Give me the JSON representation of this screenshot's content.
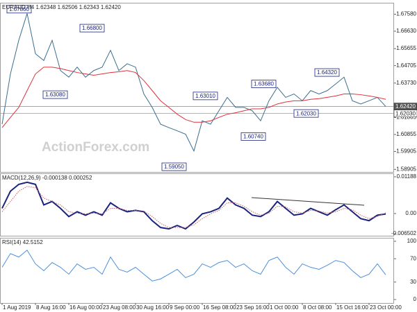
{
  "chart_data": [
    {
      "type": "line",
      "title": "EURAUD,H4  1.62348 1.62506 1.62343 1.62420",
      "watermark": "ActionForex.com",
      "x": [
        0,
        12,
        24,
        36,
        48,
        60,
        72,
        84,
        96,
        108,
        120,
        132,
        144,
        156,
        168,
        180,
        192,
        204,
        216,
        228,
        240,
        252,
        264,
        276,
        288,
        300,
        312,
        324,
        336,
        348,
        360,
        372,
        384,
        396,
        408,
        420,
        432,
        444,
        456,
        468,
        480,
        492,
        504,
        516,
        528,
        540,
        552
      ],
      "series": [
        {
          "name": "EURAUD",
          "color": "#3a6e8f",
          "style": "solid",
          "values": [
            1.6143,
            1.6424,
            1.6612,
            1.6762,
            1.6537,
            1.6499,
            1.6612,
            1.6443,
            1.6406,
            1.6462,
            1.6406,
            1.6443,
            1.6462,
            1.6556,
            1.6443,
            1.6481,
            1.6462,
            1.6312,
            1.6237,
            1.6143,
            1.6124,
            1.6106,
            1.6087,
            1.5993,
            1.6162,
            1.6143,
            1.6218,
            1.6293,
            1.6237,
            1.6237,
            1.6218,
            1.6162,
            1.6274,
            1.6349,
            1.6293,
            1.6312,
            1.6274,
            1.6331,
            1.6312,
            1.6331,
            1.6368,
            1.6406,
            1.6274,
            1.6256,
            1.6274,
            1.6293,
            1.6242
          ]
        },
        {
          "name": "MA",
          "color": "#e0303a",
          "style": "solid",
          "values": [
            1.6124,
            1.6181,
            1.6237,
            1.6331,
            1.6424,
            1.6462,
            1.6462,
            1.6454,
            1.6443,
            1.6432,
            1.6424,
            1.6417,
            1.6424,
            1.6432,
            1.6436,
            1.6443,
            1.6432,
            1.6387,
            1.6331,
            1.6274,
            1.6237,
            1.6199,
            1.6169,
            1.6154,
            1.6154,
            1.6162,
            1.6181,
            1.6199,
            1.6207,
            1.6218,
            1.6229,
            1.6229,
            1.6237,
            1.6256,
            1.6267,
            1.6274,
            1.6274,
            1.6282,
            1.6286,
            1.6293,
            1.6301,
            1.6312,
            1.6312,
            1.6308,
            1.6301,
            1.6293,
            1.6282
          ]
        }
      ],
      "xlim": [
        -3,
        564
      ],
      "ylim": [
        1.5876,
        1.6818
      ],
      "yticks": [
        {
          "value": 1.6758,
          "label": "1.67580"
        },
        {
          "value": 1.6663,
          "label": "1.66630"
        },
        1.65655,
        1.64705,
        {
          "value": 1.6373,
          "label": "1.63730"
        },
        1.61805,
        1.60855,
        1.59905,
        1.58905
      ],
      "price_lines": [
        {
          "value": 1.6242,
          "label": "1.62420",
          "color": "#555555"
        },
        {
          "value": 1.6203,
          "label": "1.62030",
          "color": "#ffffff"
        }
      ],
      "annotations": [
        {
          "label": "1.67860",
          "value": 1.6786,
          "x": 42
        },
        {
          "label": "1.66800",
          "value": 1.668,
          "x": 147
        },
        {
          "label": "1.63080",
          "value": 1.6308,
          "x": 94
        },
        {
          "label": "1.59050",
          "value": 1.5905,
          "x": 265
        },
        {
          "label": "1.63010",
          "value": 1.6301,
          "x": 310
        },
        {
          "label": "1.60740",
          "value": 1.6074,
          "x": 379
        },
        {
          "label": "1.63680",
          "value": 1.6368,
          "x": 394
        },
        {
          "label": "1.62030",
          "value": 1.6203,
          "x": 455
        },
        {
          "label": "1.64320",
          "value": 1.6432,
          "x": 485
        }
      ]
    },
    {
      "type": "line",
      "title": "MACD(12,26,9) -0.000138 0.000252",
      "x": [
        0,
        12,
        24,
        36,
        48,
        60,
        72,
        84,
        96,
        108,
        120,
        132,
        144,
        156,
        168,
        180,
        192,
        204,
        216,
        228,
        240,
        252,
        264,
        276,
        288,
        300,
        312,
        324,
        336,
        348,
        360,
        372,
        384,
        396,
        408,
        420,
        432,
        444,
        456,
        468,
        480,
        492,
        504,
        516,
        528,
        540,
        552
      ],
      "series": [
        {
          "name": "MACD",
          "color": "#1a237e",
          "style": "thick",
          "values": [
            0.00168,
            0.00722,
            0.00944,
            0.0101,
            0.00944,
            0.00279,
            0.0039,
            0.00168,
            -0.00097,
            0.00058,
            -0.00053,
            0.00058,
            -0.00053,
            0.00346,
            0.00168,
            0.00058,
            0.00102,
            0.00058,
            -0.0023,
            -0.00452,
            -0.00496,
            -0.00385,
            -0.00496,
            -0.00275,
            -9e-05,
            0.00058,
            0.00168,
            0.005,
            0.00279,
            0.00168,
            -0.00053,
            -0.00097,
            0.00058,
            0.0039,
            0.00168,
            -0.00053,
            -9e-05,
            0.00168,
            0.00058,
            -0.00053,
            0.00124,
            0.00279,
            0.00058,
            -0.00164,
            -0.0023,
            -0.00053,
            -0.000138
          ]
        },
        {
          "name": "Signal",
          "color": "#c06060",
          "style": "dotted",
          "values": [
            0.00058,
            0.0039,
            0.00722,
            0.00877,
            0.00833,
            0.005,
            0.0039,
            0.00279,
            0.00058,
            0.00013,
            -9e-05,
            0.00013,
            -9e-05,
            0.00168,
            0.00168,
            0.00102,
            0.00102,
            0.0008,
            -0.00097,
            -0.00319,
            -0.00452,
            -0.00452,
            -0.00452,
            -0.00363,
            -0.00164,
            -9e-05,
            0.00102,
            0.00346,
            0.00346,
            0.00235,
            0.00058,
            -0.00053,
            0.00013,
            0.00235,
            0.00213,
            0.00058,
            0.00013,
            0.00102,
            0.0008,
            0.00013,
            0.00058,
            0.00168,
            0.00124,
            -0.00053,
            -0.00164,
            -0.00097,
            0.000252
          ]
        }
      ],
      "xlim": [
        -3,
        564
      ],
      "ylim": [
        -0.00717,
        0.01277
      ],
      "yticks": [
        0.01188,
        {
          "value": 0,
          "label": "0.00"
        },
        -0.006502
      ]
    },
    {
      "type": "line",
      "title": "RSI(14) 42.5152",
      "x": [
        0,
        12,
        24,
        36,
        48,
        60,
        72,
        84,
        96,
        108,
        120,
        132,
        144,
        156,
        168,
        180,
        192,
        204,
        216,
        228,
        240,
        252,
        264,
        276,
        288,
        300,
        312,
        324,
        336,
        348,
        360,
        372,
        384,
        396,
        408,
        420,
        432,
        444,
        456,
        468,
        480,
        492,
        504,
        516,
        528,
        540,
        552
      ],
      "series": [
        {
          "name": "RSI",
          "color": "#4a90d9",
          "style": "solid",
          "values": [
            55.3,
            78.8,
            72.9,
            84.7,
            61.2,
            49.4,
            63.5,
            55.3,
            43.5,
            61.2,
            51.8,
            55.3,
            43.5,
            72.9,
            51.8,
            47.1,
            55.3,
            43.5,
            31.8,
            35.3,
            43.5,
            51.8,
            37.6,
            43.5,
            61.2,
            55.3,
            63.5,
            67.1,
            55.3,
            61.2,
            49.4,
            43.5,
            67.1,
            72.9,
            55.3,
            43.5,
            61.2,
            55.3,
            51.8,
            58.8,
            67.1,
            63.5,
            49.4,
            37.6,
            43.5,
            61.2,
            42.5152
          ]
        }
      ],
      "xlim": [
        -3,
        564
      ],
      "ylim": [
        -5.9,
        104.7
      ],
      "yticks": [
        100,
        70,
        30,
        0
      ],
      "xticks": [
        {
          "value": 0,
          "label": "1 Aug 2019"
        },
        {
          "value": 48,
          "label": "8 Aug 16:00"
        },
        {
          "value": 96,
          "label": "16 Aug 00:00"
        },
        {
          "value": 144,
          "label": "23 Aug 08:00"
        },
        {
          "value": 192,
          "label": "30 Aug 16:00"
        },
        {
          "value": 240,
          "label": "9 Sep 00:00"
        },
        {
          "value": 288,
          "label": "16 Sep 08:00"
        },
        {
          "value": 336,
          "label": "23 Sep 16:00"
        },
        {
          "value": 384,
          "label": "1 Oct 00:00"
        },
        {
          "value": 432,
          "label": "8 Oct 08:00"
        },
        {
          "value": 480,
          "label": "15 Oct 16:00"
        },
        {
          "value": 528,
          "label": "23 Oct 00:00"
        }
      ]
    }
  ]
}
